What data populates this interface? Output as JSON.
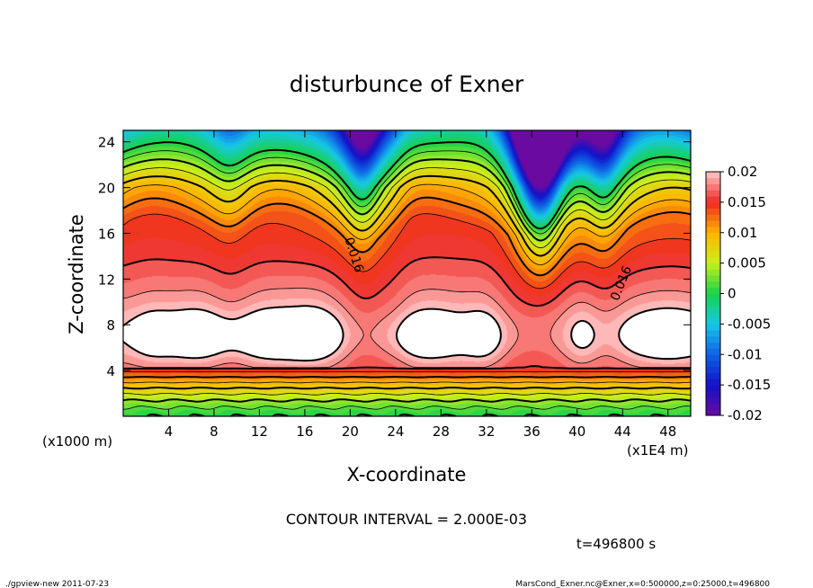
{
  "chart_data": {
    "type": "heatmap",
    "title": "disturbunce of Exner",
    "xlabel": "X-coordinate",
    "ylabel": "Z-coordinate",
    "x_unit_left": "(x1000 m)",
    "x_unit_right": "(x1E4 m)",
    "xlim": [
      0,
      50
    ],
    "ylim": [
      0,
      25
    ],
    "xticks": [
      4,
      8,
      12,
      16,
      20,
      24,
      28,
      32,
      36,
      40,
      44,
      48
    ],
    "yticks": [
      4,
      8,
      12,
      16,
      20,
      24
    ],
    "contour_interval_text": "CONTOUR INTERVAL = 2.000E-03",
    "contour_labels": [
      {
        "text": "0.016",
        "x": 20,
        "y": 14
      },
      {
        "text": "0.016",
        "x": 44.2,
        "y": 11.5
      }
    ],
    "time_text": "t=496800 s",
    "colorbar": {
      "ticks": [
        "0.02",
        "0.015",
        "0.01",
        "0.005",
        "0",
        "-0.005",
        "-0.01",
        "-0.015",
        "-0.02"
      ],
      "range": [
        -0.02,
        0.02
      ]
    },
    "field_description_levels": [
      0.0,
      0.002,
      0.004,
      0.006,
      0.008,
      0.01,
      0.012,
      0.014,
      0.016,
      0.018,
      0.02
    ]
  },
  "footer": {
    "left": "./gpview-new   2011-07-23",
    "right": "MarsCond_Exner.nc@Exner,x=0:500000,z=0:25000,t=496800"
  },
  "colors": {
    "c_neg_020": "#6a0aa0",
    "c_neg_015": "#1212c8",
    "c_neg_010": "#1060e6",
    "c_neg_005": "#16c8e6",
    "c_000": "#18d24a",
    "c_005": "#c8f01c",
    "c_010": "#ffb400",
    "c_015": "#ee2822",
    "c_020": "#ffc8c8"
  }
}
